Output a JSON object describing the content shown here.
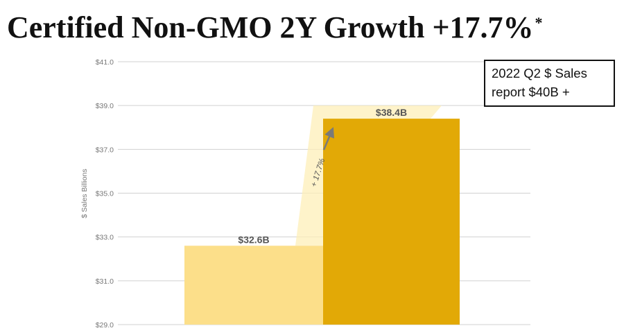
{
  "title": {
    "text": "Certified Non-GMO 2Y Growth +17.7%",
    "marker": "*"
  },
  "note": {
    "line1": "2022 Q2 $ Sales",
    "line2": "report $40B +"
  },
  "chart_data": {
    "type": "bar",
    "title": "Certified Non-GMO 2Y Growth +17.7%",
    "ylabel": "$ Sales Billions",
    "xlabel": "",
    "ylim": [
      29.0,
      41.0
    ],
    "yticks": [
      29.0,
      31.0,
      33.0,
      35.0,
      37.0,
      39.0,
      41.0
    ],
    "ytick_labels": [
      "$29.0",
      "$31.0",
      "$33.0",
      "$35.0",
      "$37.0",
      "$39.0",
      "$41.0"
    ],
    "values": [
      32.6,
      38.4
    ],
    "data_labels": [
      "$32.6B",
      "$38.4B"
    ],
    "bar_colors": [
      "#FCDF8A",
      "#E2A906"
    ],
    "growth_label": "+ 17.7%",
    "grid": true
  }
}
